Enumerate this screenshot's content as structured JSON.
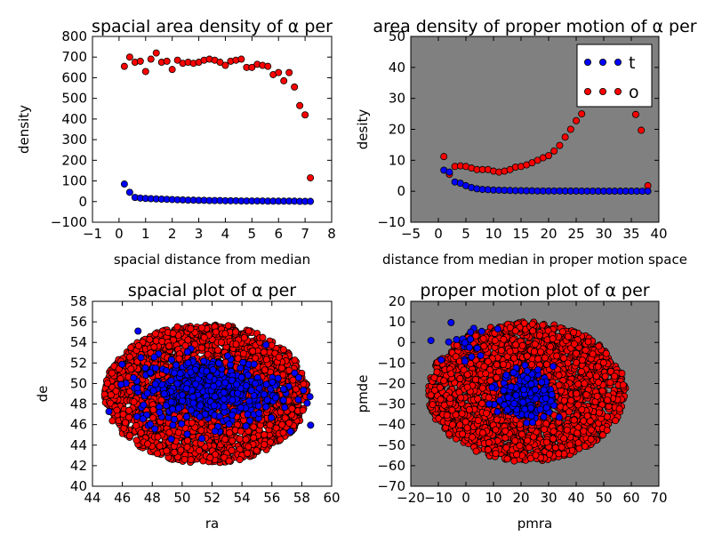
{
  "chart_data": [
    {
      "type": "scatter",
      "title": "spacial area density of α per",
      "xlabel": "spacial distance from median",
      "ylabel": "density",
      "xlim": [
        -1,
        8
      ],
      "ylim": [
        -100,
        800
      ],
      "xticks": [
        "−1",
        "0",
        "1",
        "2",
        "3",
        "4",
        "5",
        "6",
        "7",
        "8"
      ],
      "yticks": [
        "−100",
        "0",
        "100",
        "200",
        "300",
        "400",
        "500",
        "600",
        "700",
        "800"
      ],
      "background": "#ffffff",
      "series": [
        {
          "color": "#ff0000",
          "points": [
            [
              0.2,
              655
            ],
            [
              0.4,
              700
            ],
            [
              0.6,
              675
            ],
            [
              0.8,
              680
            ],
            [
              1.0,
              630
            ],
            [
              1.2,
              690
            ],
            [
              1.4,
              720
            ],
            [
              1.6,
              675
            ],
            [
              1.8,
              680
            ],
            [
              2.0,
              640
            ],
            [
              2.2,
              685
            ],
            [
              2.4,
              670
            ],
            [
              2.6,
              675
            ],
            [
              2.8,
              670
            ],
            [
              3.0,
              675
            ],
            [
              3.2,
              685
            ],
            [
              3.4,
              690
            ],
            [
              3.6,
              685
            ],
            [
              3.8,
              675
            ],
            [
              4.0,
              660
            ],
            [
              4.2,
              680
            ],
            [
              4.4,
              685
            ],
            [
              4.6,
              690
            ],
            [
              4.8,
              650
            ],
            [
              5.0,
              650
            ],
            [
              5.2,
              665
            ],
            [
              5.4,
              660
            ],
            [
              5.6,
              655
            ],
            [
              5.8,
              615
            ],
            [
              6.0,
              625
            ],
            [
              6.2,
              585
            ],
            [
              6.4,
              625
            ],
            [
              6.6,
              555
            ],
            [
              6.8,
              465
            ],
            [
              7.0,
              420
            ],
            [
              7.2,
              115
            ]
          ]
        },
        {
          "color": "#0000ff",
          "points": [
            [
              0.2,
              85
            ],
            [
              0.4,
              45
            ],
            [
              0.6,
              20
            ],
            [
              0.8,
              17
            ],
            [
              1.0,
              15
            ],
            [
              1.2,
              14
            ],
            [
              1.4,
              13
            ],
            [
              1.6,
              12
            ],
            [
              1.8,
              11
            ],
            [
              2.0,
              10
            ],
            [
              2.2,
              9
            ],
            [
              2.4,
              8
            ],
            [
              2.6,
              7
            ],
            [
              2.8,
              7
            ],
            [
              3.0,
              6
            ],
            [
              3.2,
              6
            ],
            [
              3.4,
              5
            ],
            [
              3.6,
              5
            ],
            [
              3.8,
              5
            ],
            [
              4.0,
              4
            ],
            [
              4.2,
              4
            ],
            [
              4.4,
              4
            ],
            [
              4.6,
              3
            ],
            [
              4.8,
              3
            ],
            [
              5.0,
              3
            ],
            [
              5.2,
              3
            ],
            [
              5.4,
              3
            ],
            [
              5.6,
              2
            ],
            [
              5.8,
              2
            ],
            [
              6.0,
              2
            ],
            [
              6.2,
              2
            ],
            [
              6.4,
              2
            ],
            [
              6.6,
              2
            ],
            [
              6.8,
              1
            ],
            [
              7.0,
              1
            ],
            [
              7.2,
              1
            ]
          ]
        }
      ]
    },
    {
      "type": "scatter",
      "title": "area density of proper motion of α per",
      "xlabel": "distance from median in proper motion space",
      "ylabel": "desity",
      "xlim": [
        -5,
        40
      ],
      "ylim": [
        -10,
        50
      ],
      "xticks": [
        "−5",
        "0",
        "5",
        "10",
        "15",
        "20",
        "25",
        "30",
        "35",
        "40"
      ],
      "yticks": [
        "−10",
        "0",
        "10",
        "20",
        "30",
        "40",
        "50"
      ],
      "background": "#808080",
      "legend": {
        "position": "top-right",
        "entries": [
          {
            "label": "t",
            "color": "#0000ff"
          },
          {
            "label": "o",
            "color": "#ff0000"
          }
        ]
      },
      "series": [
        {
          "color": "#ff0000",
          "points": [
            [
              1,
              11.2
            ],
            [
              2,
              5.5
            ],
            [
              3,
              8
            ],
            [
              4,
              8.2
            ],
            [
              5,
              8
            ],
            [
              6,
              7.5
            ],
            [
              7,
              7
            ],
            [
              8,
              7
            ],
            [
              9,
              7
            ],
            [
              10,
              6.5
            ],
            [
              11,
              6.2
            ],
            [
              12,
              6.5
            ],
            [
              13,
              7
            ],
            [
              14,
              7.8
            ],
            [
              15,
              8
            ],
            [
              16,
              8.5
            ],
            [
              17,
              9.2
            ],
            [
              18,
              10
            ],
            [
              19,
              10.8
            ],
            [
              20,
              11.5
            ],
            [
              21,
              13
            ],
            [
              22,
              14.8
            ],
            [
              23,
              17.5
            ],
            [
              24,
              20
            ],
            [
              25,
              22.8
            ],
            [
              26,
              25
            ],
            [
              27,
              28.5
            ],
            [
              35.8,
              24.8
            ],
            [
              36.8,
              19.7
            ],
            [
              38,
              1.8
            ]
          ]
        },
        {
          "color": "#0000ff",
          "points": [
            [
              1,
              6.8
            ],
            [
              2,
              6.2
            ],
            [
              3,
              3
            ],
            [
              4,
              2.6
            ],
            [
              5,
              1.8
            ],
            [
              6,
              1.2
            ],
            [
              7,
              0.8
            ],
            [
              8,
              0.6
            ],
            [
              9,
              0.5
            ],
            [
              10,
              0.4
            ],
            [
              11,
              0.35
            ],
            [
              12,
              0.3
            ],
            [
              13,
              0.25
            ],
            [
              14,
              0.2
            ],
            [
              15,
              0.2
            ],
            [
              16,
              0.15
            ],
            [
              17,
              0.15
            ],
            [
              18,
              0.1
            ],
            [
              19,
              0.1
            ],
            [
              20,
              0.1
            ],
            [
              21,
              0.1
            ],
            [
              22,
              0.1
            ],
            [
              23,
              0.08
            ],
            [
              24,
              0.08
            ],
            [
              25,
              0.08
            ],
            [
              26,
              0.06
            ],
            [
              27,
              0.06
            ],
            [
              28,
              0.06
            ],
            [
              29,
              0.05
            ],
            [
              30,
              0.05
            ],
            [
              31,
              0.05
            ],
            [
              32,
              0.04
            ],
            [
              33,
              0.04
            ],
            [
              34,
              0.04
            ],
            [
              35,
              0.03
            ],
            [
              36,
              0.03
            ],
            [
              37,
              0.02
            ],
            [
              38,
              0.02
            ]
          ]
        }
      ]
    },
    {
      "type": "scatter",
      "title": "spacial plot of α per",
      "xlabel": "ra",
      "ylabel": "de",
      "xlim": [
        44,
        60
      ],
      "ylim": [
        40,
        58
      ],
      "xticks": [
        "44",
        "46",
        "48",
        "50",
        "52",
        "54",
        "56",
        "58",
        "60"
      ],
      "yticks": [
        "40",
        "42",
        "44",
        "46",
        "48",
        "50",
        "52",
        "54",
        "56",
        "58"
      ],
      "background": "#ffffff",
      "series": [
        {
          "color": "#ff0000",
          "distribution": "ellipse",
          "center": [
            51.6,
            49.0
          ],
          "radius": [
            6.8,
            6.8
          ],
          "yrange": [
            42.3,
            55.7
          ],
          "count": 2600
        },
        {
          "color": "#0000ff",
          "distribution": "gaussian",
          "center": [
            51.8,
            49.4
          ],
          "sigma": [
            2.4,
            1.6
          ],
          "count": 500
        }
      ]
    },
    {
      "type": "scatter",
      "title": "proper motion plot of α per",
      "xlabel": "pmra",
      "ylabel": "pmde",
      "xlim": [
        -20,
        70
      ],
      "ylim": [
        -70,
        20
      ],
      "xticks": [
        "−20",
        "−10",
        "0",
        "10",
        "20",
        "30",
        "40",
        "50",
        "60",
        "70"
      ],
      "yticks": [
        "−70",
        "−60",
        "−50",
        "−40",
        "−30",
        "−20",
        "−10",
        "0",
        "10",
        "20"
      ],
      "background": "#808080",
      "series": [
        {
          "color": "#ff0000",
          "distribution": "ellipse",
          "center": [
            22,
            -24
          ],
          "radius": [
            36,
            34
          ],
          "count": 2300
        },
        {
          "color": "#0000ff",
          "distribution": "gaussian",
          "center": [
            22,
            -26
          ],
          "sigma": [
            5,
            6
          ],
          "count": 200
        },
        {
          "color": "#0000ff",
          "distribution": "gaussian",
          "center": [
            2,
            0
          ],
          "sigma": [
            5,
            5
          ],
          "count": 25
        }
      ]
    }
  ]
}
